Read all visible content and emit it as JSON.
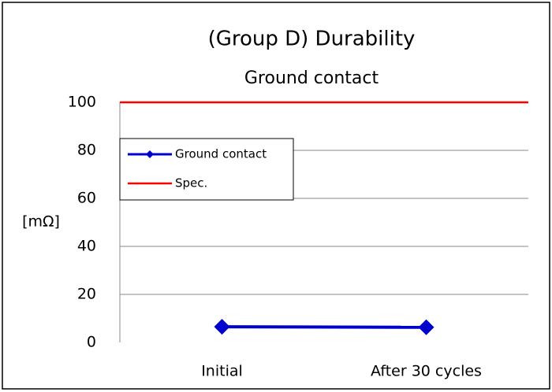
{
  "chart_data": {
    "type": "line",
    "title": "(Group D) Durability",
    "subtitle": "Ground contact",
    "y_label": "[mΩ]",
    "categories": [
      "Initial",
      "After 30 cycles"
    ],
    "series": [
      {
        "name": "Ground contact",
        "color": "#0000cc",
        "marker": "diamond",
        "values": [
          6.5,
          6.3
        ]
      },
      {
        "name": "Spec.",
        "color": "#ff0000",
        "marker": null,
        "values": [
          100,
          100
        ]
      }
    ],
    "ylim": [
      0,
      100
    ],
    "yticks": [
      0,
      20,
      40,
      60,
      80,
      100
    ],
    "grid": true,
    "legend": "upper left"
  }
}
